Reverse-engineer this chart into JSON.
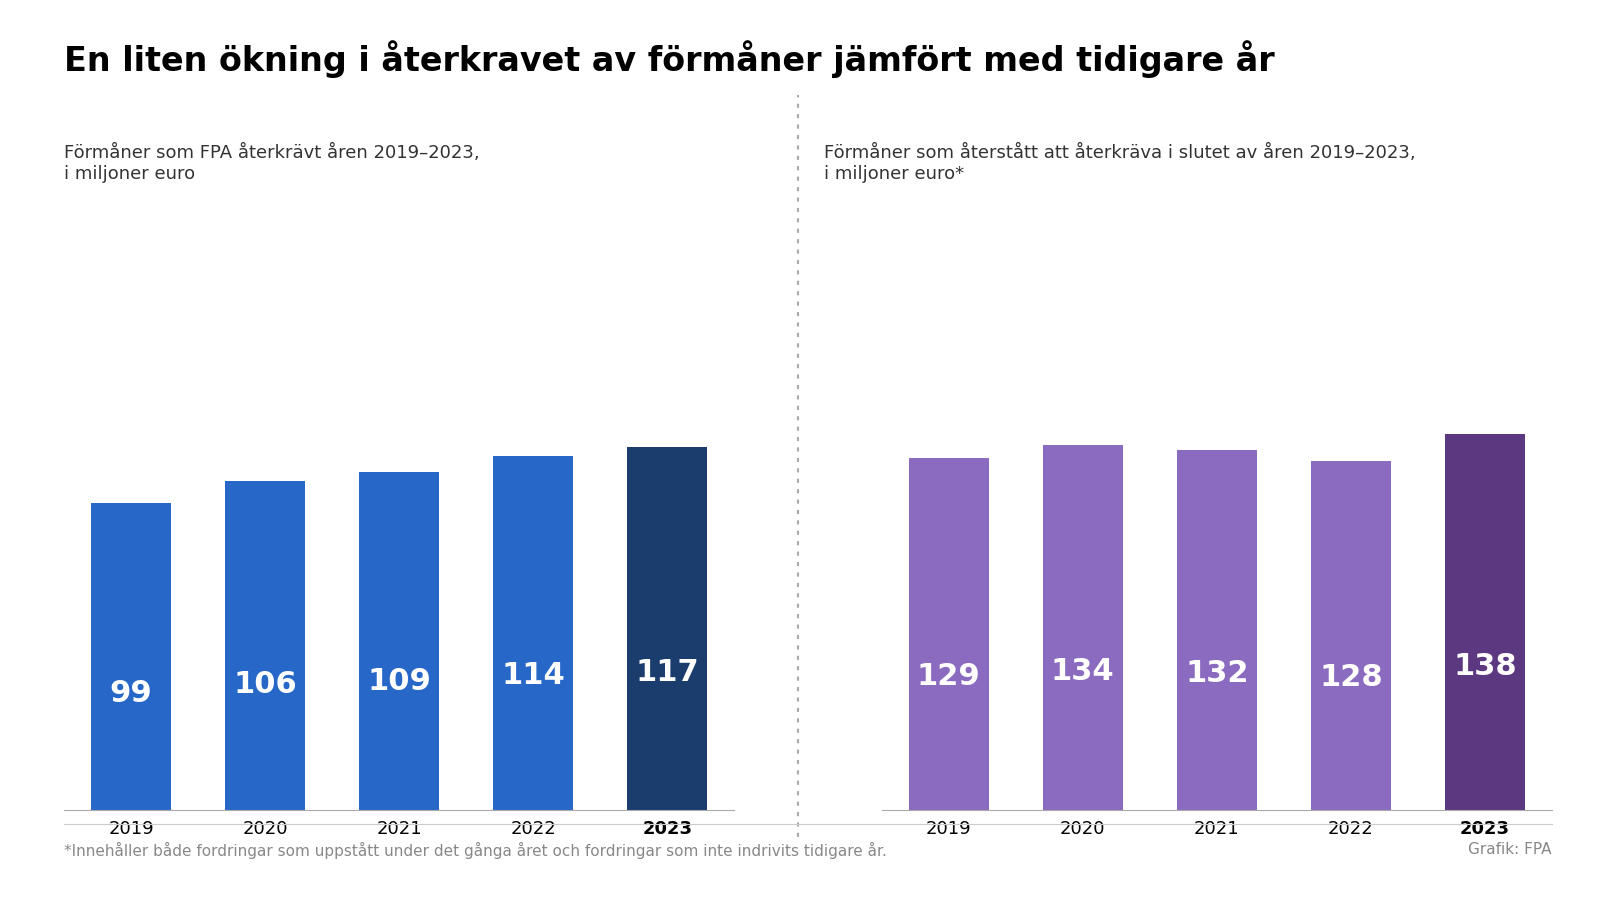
{
  "title": "En liten ökning i återkravet av förmåner jämfört med tidigare år",
  "left_subtitle": "Förmåner som FPA återkrävt åren 2019–2023,\ni miljoner euro",
  "right_subtitle": "Förmåner som återstått att återkräva i slutet av åren 2019–2023,\ni miljoner euro*",
  "footnote": "*Innehåller både fordringar som uppstått under det gånga året och fordringar som inte indrivits tidigare år.",
  "credit": "Grafik: FPA",
  "years": [
    "2019",
    "2020",
    "2021",
    "2022",
    "2023"
  ],
  "left_values": [
    99,
    106,
    109,
    114,
    117
  ],
  "right_values": [
    129,
    134,
    132,
    128,
    138
  ],
  "left_colors": [
    "#2667c7",
    "#2667c7",
    "#2667c7",
    "#2667c7",
    "#1b3d6e"
  ],
  "right_colors": [
    "#8b6bbf",
    "#8b6bbf",
    "#8b6bbf",
    "#8b6bbf",
    "#5c3880"
  ],
  "bar_text_color": "#ffffff",
  "background_color": "#ffffff",
  "title_fontsize": 24,
  "subtitle_fontsize": 13,
  "bar_label_fontsize": 22,
  "tick_fontsize": 13,
  "footnote_fontsize": 11,
  "ylim_left": [
    0,
    145
  ],
  "ylim_right": [
    0,
    165
  ]
}
